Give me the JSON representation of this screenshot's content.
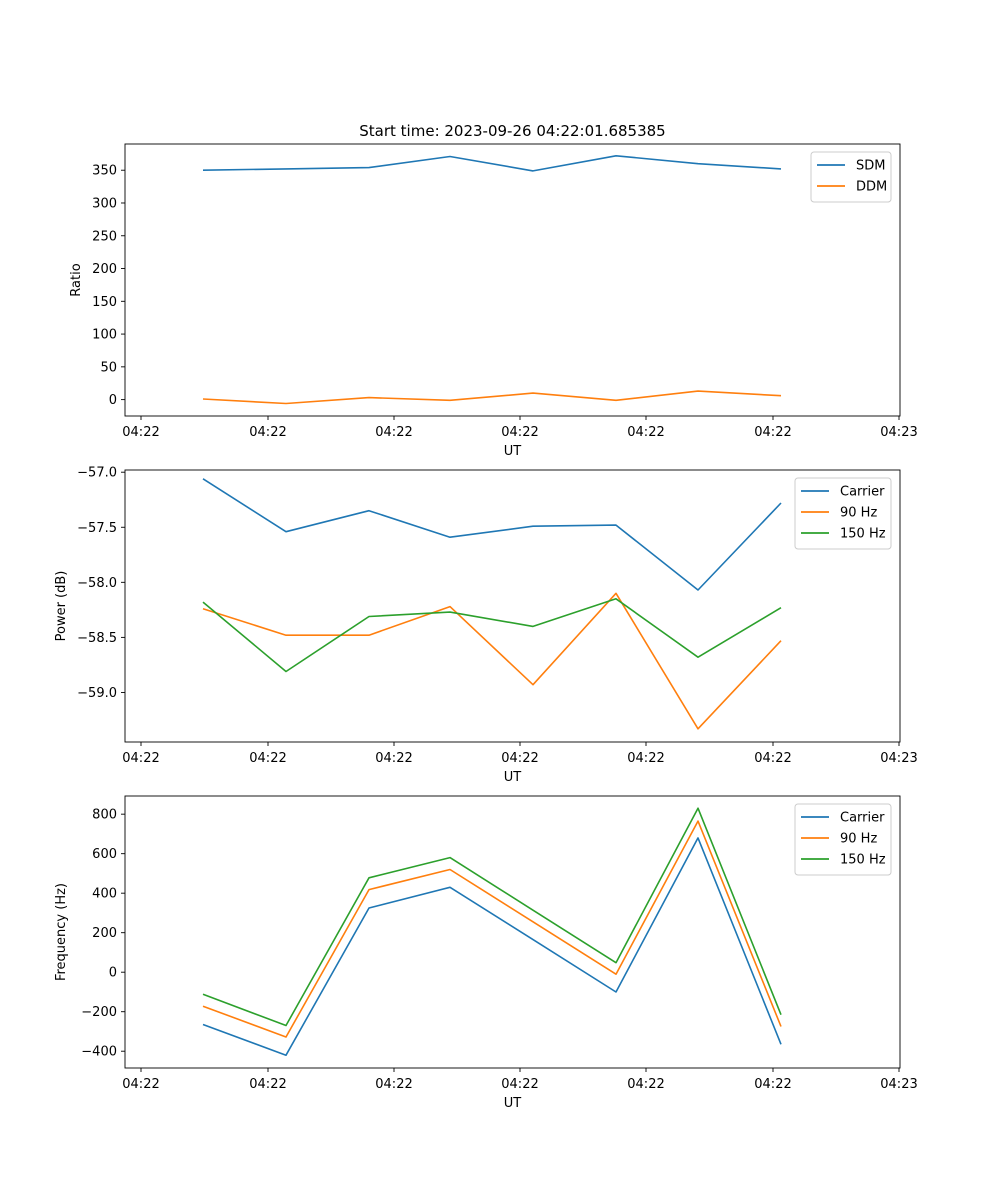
{
  "chart_data": [
    {
      "type": "line",
      "title": "Start time: 2023-09-26 04:22:01.685385",
      "xlabel": "UT",
      "ylabel": "Ratio",
      "x_ticks": [
        "04:22",
        "04:22",
        "04:22",
        "04:22",
        "04:22",
        "04:22",
        "04:23"
      ],
      "ylim": [
        -25,
        390
      ],
      "y_ticks": [
        0,
        50,
        100,
        150,
        200,
        250,
        300,
        350
      ],
      "legend_position": "top-right",
      "series": [
        {
          "name": "SDM",
          "color": "#1f77b4",
          "values": [
            350,
            352,
            354,
            371,
            349,
            372,
            360,
            352
          ]
        },
        {
          "name": "DDM",
          "color": "#ff7f0e",
          "values": [
            1,
            -6,
            3,
            -1,
            10,
            -1,
            13,
            6
          ]
        }
      ]
    },
    {
      "type": "line",
      "title": "",
      "xlabel": "UT",
      "ylabel": "Power (dB)",
      "x_ticks": [
        "04:22",
        "04:22",
        "04:22",
        "04:22",
        "04:22",
        "04:22",
        "04:23"
      ],
      "ylim": [
        -59.45,
        -56.98
      ],
      "y_ticks": [
        -59.0,
        -58.5,
        -58.0,
        -57.5,
        -57.0
      ],
      "legend_position": "top-right",
      "series": [
        {
          "name": "Carrier",
          "color": "#1f77b4",
          "values": [
            -57.06,
            -57.54,
            -57.35,
            -57.59,
            -57.49,
            -57.48,
            -58.07,
            -57.28
          ]
        },
        {
          "name": "90 Hz",
          "color": "#ff7f0e",
          "values": [
            -58.24,
            -58.48,
            -58.48,
            -58.22,
            -58.93,
            -58.1,
            -59.33,
            -58.53
          ]
        },
        {
          "name": "150 Hz",
          "color": "#2ca02c",
          "values": [
            -58.18,
            -58.81,
            -58.31,
            -58.27,
            -58.4,
            -58.15,
            -58.68,
            -58.23
          ]
        }
      ]
    },
    {
      "type": "line",
      "title": "",
      "xlabel": "UT",
      "ylabel": "Frequency (Hz)",
      "x_ticks": [
        "04:22",
        "04:22",
        "04:22",
        "04:22",
        "04:22",
        "04:22",
        "04:23"
      ],
      "ylim": [
        -485,
        892
      ],
      "y_ticks": [
        -400,
        -200,
        0,
        200,
        400,
        600,
        800
      ],
      "legend_position": "top-right",
      "series": [
        {
          "name": "Carrier",
          "color": "#1f77b4",
          "values": [
            -265,
            -420,
            325,
            430,
            null,
            -100,
            680,
            -365
          ]
        },
        {
          "name": "90 Hz",
          "color": "#ff7f0e",
          "values": [
            -172,
            -328,
            418,
            520,
            null,
            -10,
            765,
            -275
          ]
        },
        {
          "name": "150 Hz",
          "color": "#2ca02c",
          "values": [
            -112,
            -270,
            478,
            580,
            null,
            48,
            830,
            -215
          ]
        }
      ]
    }
  ]
}
